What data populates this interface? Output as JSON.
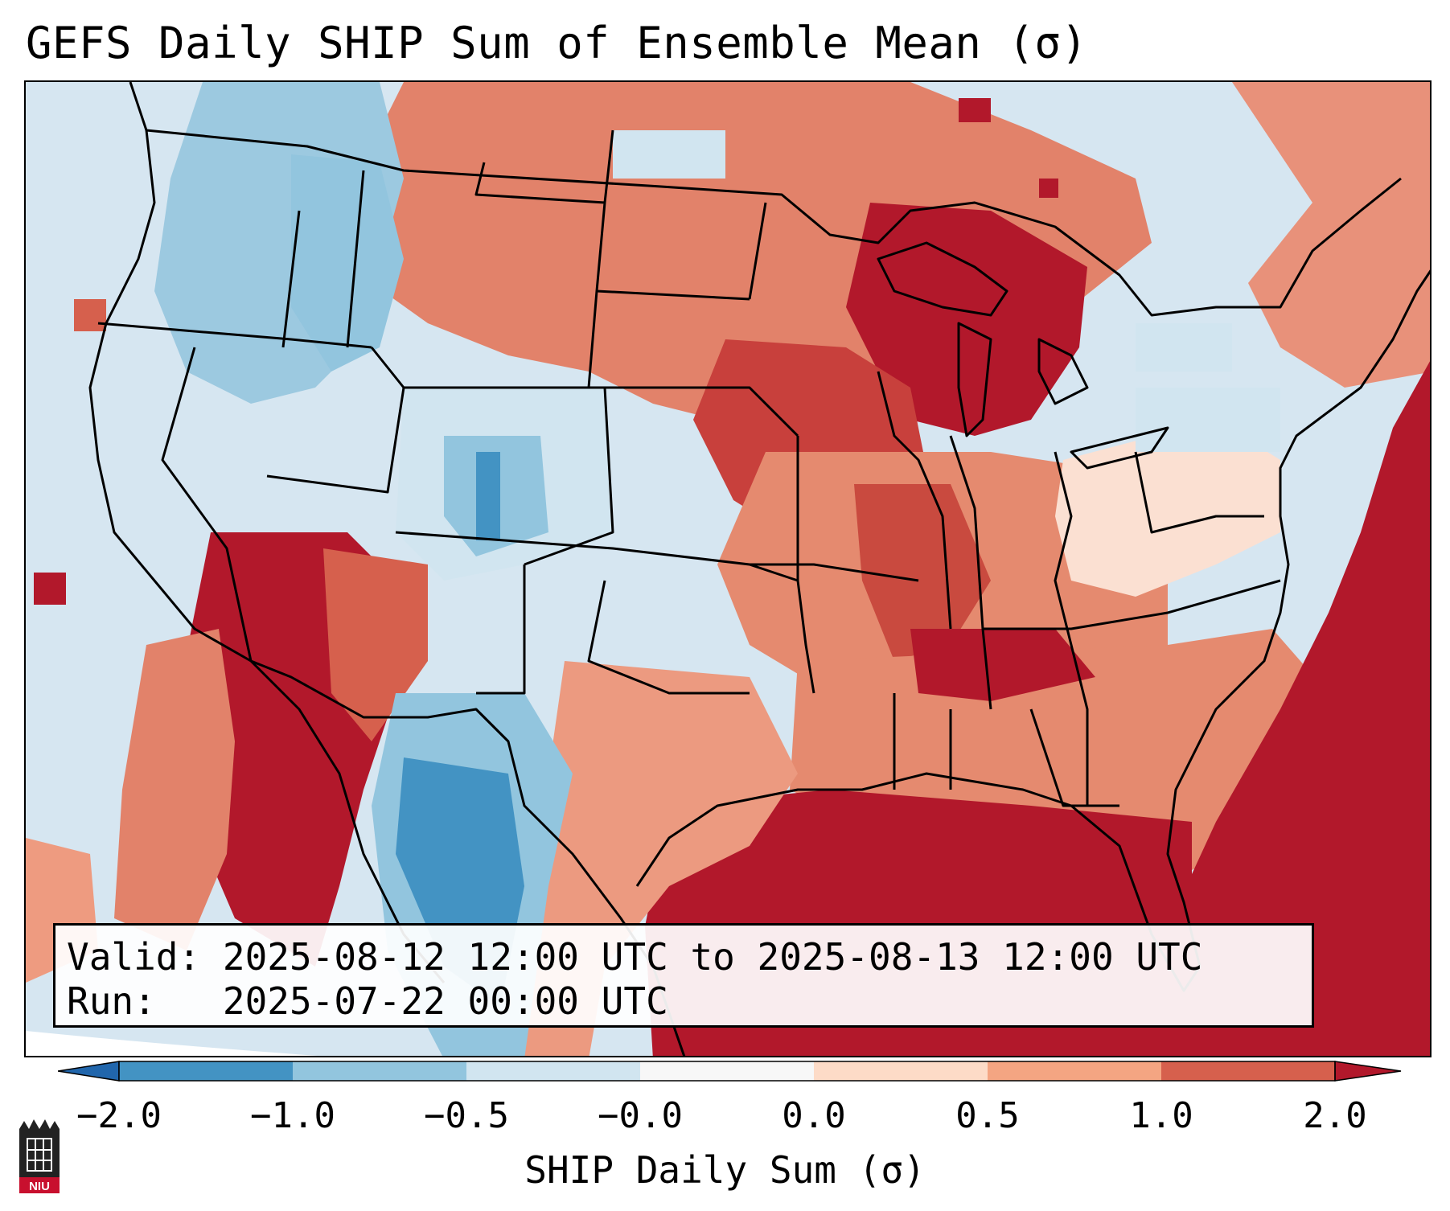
{
  "title": "GEFS Daily SHIP Sum of Ensemble Mean (σ)",
  "info": {
    "valid_label": "Valid:",
    "valid_value": "2025-08-12 12:00 UTC to 2025-08-13 12:00 UTC",
    "run_label": "Run:",
    "run_value": "2025-07-22 00:00 UTC"
  },
  "colorbar": {
    "label": "SHIP Daily Sum (σ)",
    "ticks": [
      "−2.0",
      "−1.0",
      "−0.5",
      "−0.0",
      "0.0",
      "0.5",
      "1.0",
      "2.0"
    ],
    "colors": [
      "#4393c3",
      "#92c5de",
      "#d1e5f0",
      "#f7f7f7",
      "#fddbc7",
      "#f4a582",
      "#d6604d",
      "#b2182b"
    ],
    "extend": "both"
  },
  "map": {
    "region": "Contiguous United States",
    "field_colors": {
      "strong_negative": "#4393c3",
      "negative": "#92c5de",
      "weak_negative": "#d1e5f0",
      "weak_positive": "#fddbc7",
      "positive": "#f4a582",
      "moderate_positive": "#d6604d",
      "strong_positive": "#b2182b"
    }
  },
  "logo": {
    "text": "NIU"
  }
}
